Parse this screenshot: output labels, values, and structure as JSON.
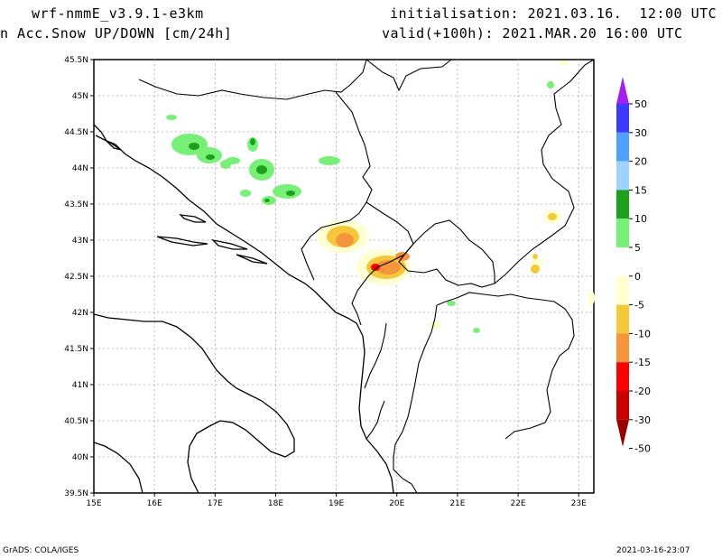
{
  "header": {
    "model": "wrf-nmmE_v3.9.1-e3km",
    "field": "n Acc.Snow UP/DOWN [cm/24h]",
    "initialisation": "initialisation: 2021.03.16.  12:00 UTC",
    "valid": "valid(+100h): 2021.MAR.20 16:00 UTC"
  },
  "footer": {
    "left": "GrADS: COLA/IGES",
    "right": "2021-03-16-23:07"
  },
  "axes": {
    "lat_labels": [
      "45.5N",
      "45N",
      "44.5N",
      "44N",
      "43.5N",
      "43N",
      "42.5N",
      "42N",
      "41.5N",
      "41N",
      "40.5N",
      "40N",
      "39.5N"
    ],
    "lon_labels": [
      "15E",
      "16E",
      "17E",
      "18E",
      "19E",
      "20E",
      "21E",
      "22E",
      "23E"
    ]
  },
  "legend": {
    "entries": [
      {
        "label": "50",
        "color": "#a020f0"
      },
      {
        "label": "30",
        "color": "#3c3cff"
      },
      {
        "label": "20",
        "color": "#50a0ff"
      },
      {
        "label": "15",
        "color": "#a0d2ff"
      },
      {
        "label": "10",
        "color": "#1ea01e"
      },
      {
        "label": "5",
        "color": "#78f078"
      },
      {
        "label": "0",
        "color": "#ffffff"
      },
      {
        "label": "-5",
        "color": "#ffffd2"
      },
      {
        "label": "-10",
        "color": "#f5c83c"
      },
      {
        "label": "-15",
        "color": "#f5963c"
      },
      {
        "label": "-20",
        "color": "#ff0000"
      },
      {
        "label": "-30",
        "color": "#c80000"
      },
      {
        "label": "-50",
        "color": "#960000"
      }
    ]
  }
}
